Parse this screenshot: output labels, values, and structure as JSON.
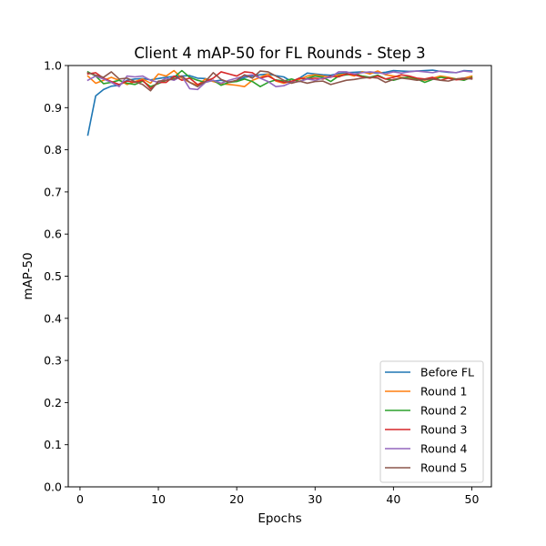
{
  "chart_data": {
    "type": "line",
    "title": "Client 4 mAP-50 for FL Rounds - Step 3",
    "xlabel": "Epochs",
    "ylabel": "mAP-50",
    "xlim": [
      -1.5,
      52.5
    ],
    "ylim": [
      0.0,
      1.0
    ],
    "xticks": [
      0,
      10,
      20,
      30,
      40,
      50
    ],
    "xtick_labels": [
      "0",
      "10",
      "20",
      "30",
      "40",
      "50"
    ],
    "yticks": [
      0.0,
      0.1,
      0.2,
      0.3,
      0.4,
      0.5,
      0.6,
      0.7,
      0.8,
      0.9,
      1.0
    ],
    "ytick_labels": [
      "0.0",
      "0.1",
      "0.2",
      "0.3",
      "0.4",
      "0.5",
      "0.6",
      "0.7",
      "0.8",
      "0.9",
      "1.0"
    ],
    "grid": false,
    "legend_position": "lower right",
    "x": [
      1,
      2,
      3,
      4,
      5,
      6,
      7,
      8,
      9,
      10,
      11,
      12,
      13,
      14,
      15,
      16,
      17,
      18,
      19,
      20,
      21,
      22,
      23,
      24,
      25,
      26,
      27,
      28,
      29,
      30,
      31,
      32,
      33,
      34,
      35,
      36,
      37,
      38,
      39,
      40,
      41,
      42,
      43,
      44,
      45,
      46,
      47,
      48,
      49,
      50
    ],
    "series": [
      {
        "name": "Before FL",
        "color": "#1f77b4",
        "values": [
          0.835,
          0.928,
          0.943,
          0.951,
          0.953,
          0.965,
          0.968,
          0.969,
          0.966,
          0.969,
          0.972,
          0.974,
          0.975,
          0.976,
          0.97,
          0.969,
          0.963,
          0.965,
          0.961,
          0.964,
          0.972,
          0.975,
          0.978,
          0.98,
          0.976,
          0.973,
          0.962,
          0.97,
          0.982,
          0.98,
          0.978,
          0.977,
          0.981,
          0.983,
          0.984,
          0.985,
          0.983,
          0.982,
          0.984,
          0.988,
          0.987,
          0.986,
          0.987,
          0.988,
          0.989,
          0.986,
          0.984,
          0.983,
          0.988,
          0.987
        ]
      },
      {
        "name": "Round 1",
        "color": "#ff7f0e",
        "values": [
          0.975,
          0.958,
          0.965,
          0.972,
          0.965,
          0.955,
          0.962,
          0.968,
          0.958,
          0.98,
          0.975,
          0.988,
          0.97,
          0.96,
          0.953,
          0.968,
          0.962,
          0.957,
          0.955,
          0.953,
          0.95,
          0.965,
          0.972,
          0.98,
          0.963,
          0.958,
          0.963,
          0.967,
          0.975,
          0.978,
          0.975,
          0.972,
          0.978,
          0.98,
          0.975,
          0.985,
          0.98,
          0.987,
          0.978,
          0.975,
          0.972,
          0.97,
          0.968,
          0.965,
          0.97,
          0.975,
          0.972,
          0.968,
          0.97,
          0.975
        ]
      },
      {
        "name": "Round 2",
        "color": "#2ca02c",
        "values": [
          0.985,
          0.975,
          0.957,
          0.96,
          0.965,
          0.958,
          0.955,
          0.963,
          0.95,
          0.957,
          0.965,
          0.972,
          0.988,
          0.972,
          0.965,
          0.96,
          0.965,
          0.953,
          0.96,
          0.962,
          0.968,
          0.962,
          0.95,
          0.96,
          0.966,
          0.963,
          0.968,
          0.962,
          0.97,
          0.975,
          0.972,
          0.962,
          0.975,
          0.978,
          0.98,
          0.975,
          0.972,
          0.977,
          0.968,
          0.965,
          0.97,
          0.973,
          0.968,
          0.96,
          0.967,
          0.972,
          0.97,
          0.968,
          0.965,
          0.972
        ]
      },
      {
        "name": "Round 3",
        "color": "#d62728",
        "values": [
          0.98,
          0.983,
          0.97,
          0.962,
          0.955,
          0.963,
          0.96,
          0.965,
          0.945,
          0.96,
          0.96,
          0.975,
          0.965,
          0.97,
          0.955,
          0.962,
          0.97,
          0.985,
          0.98,
          0.975,
          0.985,
          0.983,
          0.97,
          0.975,
          0.965,
          0.96,
          0.962,
          0.97,
          0.968,
          0.97,
          0.968,
          0.975,
          0.973,
          0.98,
          0.978,
          0.973,
          0.97,
          0.975,
          0.968,
          0.972,
          0.978,
          0.975,
          0.97,
          0.968,
          0.972,
          0.965,
          0.97,
          0.966,
          0.968,
          0.97
        ]
      },
      {
        "name": "Round 4",
        "color": "#9467bd",
        "values": [
          0.965,
          0.975,
          0.968,
          0.96,
          0.95,
          0.975,
          0.973,
          0.975,
          0.965,
          0.96,
          0.97,
          0.965,
          0.975,
          0.945,
          0.943,
          0.96,
          0.965,
          0.958,
          0.965,
          0.97,
          0.975,
          0.978,
          0.97,
          0.962,
          0.95,
          0.952,
          0.96,
          0.962,
          0.968,
          0.965,
          0.97,
          0.972,
          0.985,
          0.985,
          0.98,
          0.983,
          0.985,
          0.983,
          0.98,
          0.985,
          0.982,
          0.985,
          0.987,
          0.985,
          0.983,
          0.987,
          0.985,
          0.983,
          0.987,
          0.985
        ]
      },
      {
        "name": "Round 5",
        "color": "#8c564b",
        "values": [
          0.983,
          0.977,
          0.972,
          0.985,
          0.968,
          0.97,
          0.962,
          0.955,
          0.94,
          0.963,
          0.965,
          0.968,
          0.975,
          0.96,
          0.95,
          0.962,
          0.983,
          0.967,
          0.96,
          0.965,
          0.978,
          0.97,
          0.987,
          0.985,
          0.975,
          0.965,
          0.958,
          0.963,
          0.958,
          0.962,
          0.963,
          0.955,
          0.96,
          0.965,
          0.967,
          0.97,
          0.972,
          0.97,
          0.96,
          0.967,
          0.97,
          0.968,
          0.965,
          0.967,
          0.968,
          0.965,
          0.963,
          0.968,
          0.97,
          0.968
        ]
      }
    ]
  }
}
